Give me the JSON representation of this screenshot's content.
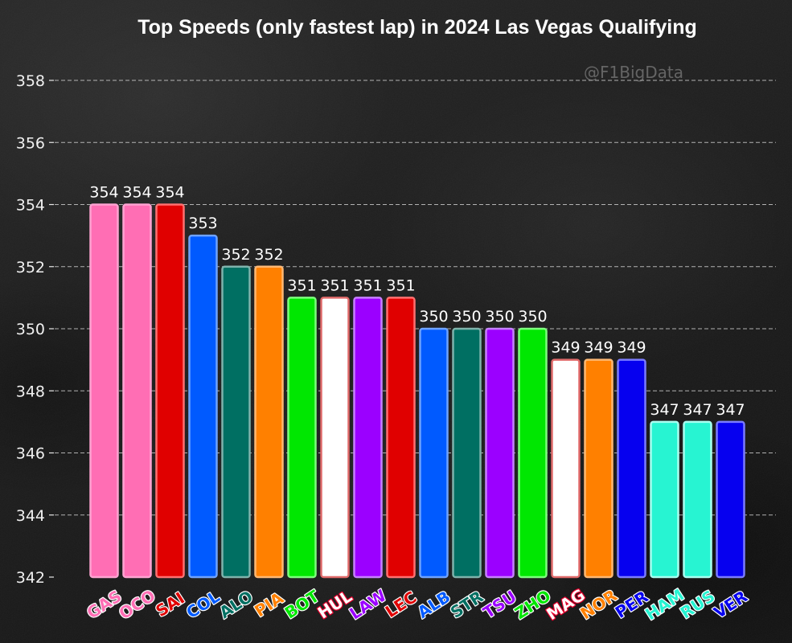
{
  "watermark": "@F1BigData",
  "chart_data": {
    "type": "bar",
    "title": "Top Speeds (only fastest lap) in 2024 Las Vegas Qualifying",
    "xlabel": "",
    "ylabel": "",
    "categories": [
      "GAS",
      "OCO",
      "SAI",
      "COL",
      "ALO",
      "PIA",
      "BOT",
      "HUL",
      "LAW",
      "LEC",
      "ALB",
      "STR",
      "TSU",
      "ZHO",
      "MAG",
      "NOR",
      "PER",
      "HAM",
      "RUS",
      "VER"
    ],
    "values": [
      354,
      354,
      354,
      353,
      352,
      352,
      351,
      351,
      351,
      351,
      350,
      350,
      350,
      350,
      349,
      349,
      349,
      347,
      347,
      347
    ],
    "ylim": [
      342,
      358
    ],
    "yticks": [
      342,
      344,
      346,
      348,
      350,
      352,
      354,
      356,
      358
    ],
    "grid": true,
    "legend": "none",
    "bar_colors": [
      "#ff6eb4",
      "#ff6eb4",
      "#e00000",
      "#005aff",
      "#006f62",
      "#ff8000",
      "#00e701",
      "#ffffff",
      "#9b00ff",
      "#e00000",
      "#005aff",
      "#006f62",
      "#9b00ff",
      "#00e701",
      "#ffffff",
      "#ff8000",
      "#0600ef",
      "#27f4d2",
      "#27f4d2",
      "#0600ef"
    ],
    "bar_edge_colors": [
      "#ffa3d2",
      "#ffa3d2",
      "#ff7070",
      "#6fa3ff",
      "#7fb3ac",
      "#ffb873",
      "#7dff7d",
      "#e06a6a",
      "#c680ff",
      "#ff7070",
      "#6fa3ff",
      "#7fb3ac",
      "#c680ff",
      "#7dff7d",
      "#e06a6a",
      "#ffb873",
      "#7b7bff",
      "#a8fff0",
      "#a8fff0",
      "#7b7bff"
    ],
    "label_colors": [
      "#ff6eb4",
      "#ff6eb4",
      "#e00000",
      "#005aff",
      "#006f62",
      "#ff8000",
      "#00e701",
      "#ffffff",
      "#9b00ff",
      "#e00000",
      "#005aff",
      "#006f62",
      "#9b00ff",
      "#00e701",
      "#ffffff",
      "#ff8000",
      "#0600ef",
      "#27f4d2",
      "#27f4d2",
      "#0600ef"
    ],
    "label_outline_colors": [
      "#ffffff",
      "#ffffff",
      "#ffffff",
      "#ffffff",
      "#ffffff",
      "#ffffff",
      "#ffffff",
      "#e8002d",
      "#ffffff",
      "#ffffff",
      "#ffffff",
      "#ffffff",
      "#ffffff",
      "#ffffff",
      "#e8002d",
      "#ffffff",
      "#ffffff",
      "#ffffff",
      "#ffffff",
      "#ffffff"
    ]
  }
}
